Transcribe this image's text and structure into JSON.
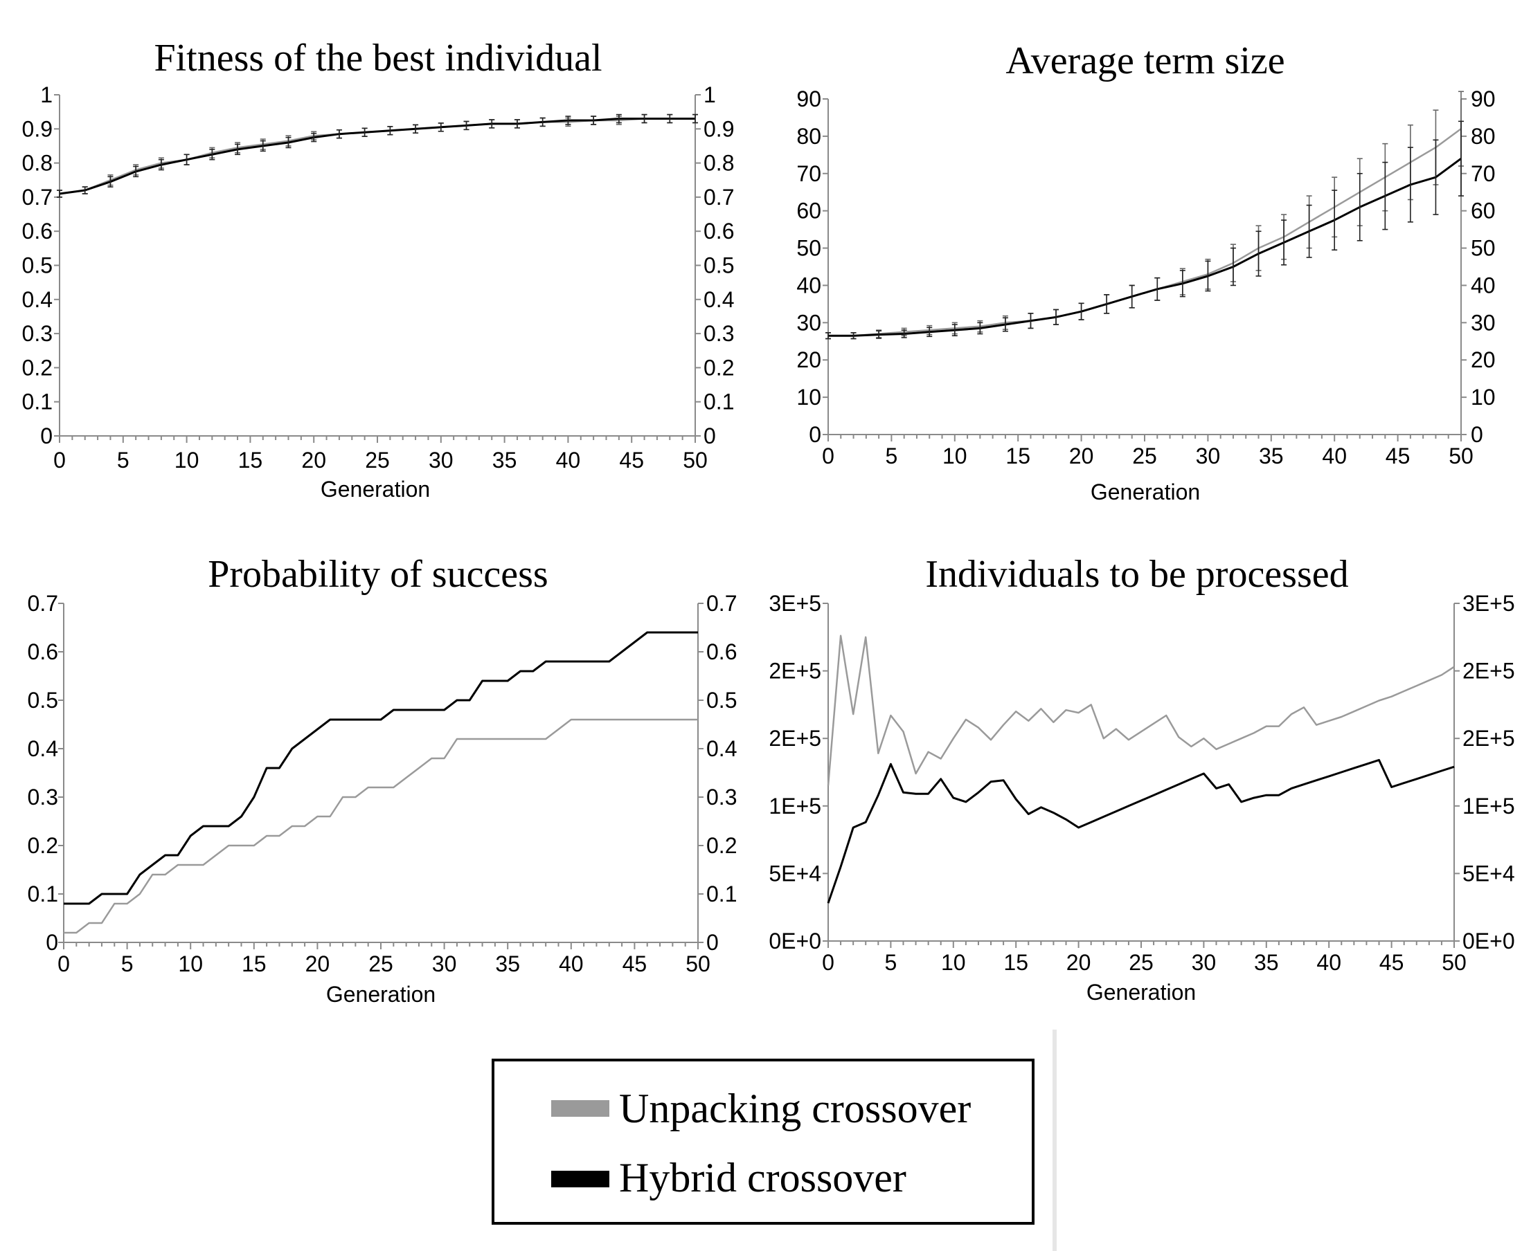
{
  "colors": {
    "unpacking": "#9a9a9a",
    "hybrid": "#000000",
    "axis": "#8a8a8a",
    "background": "#ffffff"
  },
  "legend": {
    "items": [
      {
        "label": "Unpacking crossover",
        "color": "#9a9a9a"
      },
      {
        "label": "Hybrid crossover",
        "color": "#000000"
      }
    ]
  },
  "chart_data": [
    {
      "id": "fitness",
      "type": "line",
      "title": "Fitness of the best individual",
      "xlabel": "Generation",
      "ylabel": "",
      "xlim": [
        0,
        50
      ],
      "ylim": [
        0,
        1
      ],
      "xticks": [
        0,
        5,
        10,
        15,
        20,
        25,
        30,
        35,
        40,
        45,
        50
      ],
      "yticks": [
        "0",
        "0.1",
        "0.2",
        "0.3",
        "0.4",
        "0.5",
        "0.6",
        "0.7",
        "0.8",
        "0.9",
        "1"
      ],
      "secondary_y_axis": true,
      "error_bars": true,
      "grid": false,
      "series": [
        {
          "key": "unpacking",
          "x": [
            0,
            2,
            4,
            6,
            8,
            10,
            12,
            14,
            16,
            18,
            20,
            22,
            24,
            26,
            28,
            30,
            32,
            34,
            36,
            38,
            40,
            42,
            44,
            46,
            48,
            50
          ],
          "values": [
            0.71,
            0.72,
            0.75,
            0.78,
            0.8,
            0.81,
            0.83,
            0.845,
            0.855,
            0.865,
            0.88,
            0.885,
            0.89,
            0.895,
            0.9,
            0.905,
            0.91,
            0.915,
            0.915,
            0.92,
            0.92,
            0.925,
            0.925,
            0.93,
            0.93,
            0.93
          ],
          "err": [
            0.01,
            0.01,
            0.015,
            0.015,
            0.015,
            0.015,
            0.015,
            0.015,
            0.015,
            0.015,
            0.012,
            0.012,
            0.012,
            0.012,
            0.012,
            0.012,
            0.012,
            0.012,
            0.012,
            0.012,
            0.012,
            0.012,
            0.012,
            0.012,
            0.012,
            0.012
          ]
        },
        {
          "key": "hybrid",
          "x": [
            0,
            2,
            4,
            6,
            8,
            10,
            12,
            14,
            16,
            18,
            20,
            22,
            24,
            26,
            28,
            30,
            32,
            34,
            36,
            38,
            40,
            42,
            44,
            46,
            48,
            50
          ],
          "values": [
            0.71,
            0.72,
            0.745,
            0.775,
            0.795,
            0.81,
            0.825,
            0.84,
            0.85,
            0.86,
            0.875,
            0.885,
            0.89,
            0.895,
            0.9,
            0.905,
            0.91,
            0.915,
            0.915,
            0.92,
            0.925,
            0.925,
            0.93,
            0.93,
            0.93,
            0.93
          ],
          "err": [
            0.01,
            0.01,
            0.015,
            0.015,
            0.015,
            0.015,
            0.015,
            0.015,
            0.015,
            0.015,
            0.012,
            0.012,
            0.012,
            0.012,
            0.012,
            0.012,
            0.012,
            0.012,
            0.012,
            0.012,
            0.012,
            0.012,
            0.012,
            0.012,
            0.012,
            0.012
          ]
        }
      ]
    },
    {
      "id": "termsize",
      "type": "line",
      "title": "Average term size",
      "xlabel": "Generation",
      "ylabel": "",
      "xlim": [
        0,
        50
      ],
      "ylim": [
        0,
        90
      ],
      "xticks": [
        0,
        5,
        10,
        15,
        20,
        25,
        30,
        35,
        40,
        45,
        50
      ],
      "yticks": [
        "0",
        "10",
        "20",
        "30",
        "40",
        "50",
        "60",
        "70",
        "80",
        "90"
      ],
      "secondary_y_axis": true,
      "error_bars": true,
      "grid": false,
      "series": [
        {
          "key": "unpacking",
          "x": [
            0,
            2,
            4,
            6,
            8,
            10,
            12,
            14,
            16,
            18,
            20,
            22,
            24,
            26,
            28,
            30,
            32,
            34,
            36,
            38,
            40,
            42,
            44,
            46,
            48,
            50
          ],
          "values": [
            26.5,
            26.5,
            27,
            27.5,
            28,
            28.5,
            29,
            30,
            30.5,
            31.5,
            33,
            35,
            37,
            39,
            41,
            43,
            46,
            50,
            53,
            57,
            61,
            65,
            69,
            73,
            77,
            82
          ],
          "err": [
            0.8,
            0.8,
            1,
            1,
            1.2,
            1.5,
            1.5,
            1.8,
            2,
            2,
            2.2,
            2.5,
            3,
            3,
            3.5,
            4,
            5,
            6,
            6,
            7,
            8,
            9,
            9,
            10,
            10,
            10
          ]
        },
        {
          "key": "hybrid",
          "x": [
            0,
            2,
            4,
            6,
            8,
            10,
            12,
            14,
            16,
            18,
            20,
            22,
            24,
            26,
            28,
            30,
            32,
            34,
            36,
            38,
            40,
            42,
            44,
            46,
            48,
            50
          ],
          "values": [
            26.5,
            26.5,
            26.8,
            27,
            27.5,
            28,
            28.5,
            29.5,
            30.5,
            31.5,
            33,
            35,
            37,
            39,
            40.5,
            42.5,
            45,
            48.5,
            51.5,
            54.5,
            57.5,
            61,
            64,
            67,
            69,
            74
          ],
          "err": [
            0.8,
            0.8,
            1,
            1,
            1.2,
            1.5,
            1.5,
            1.8,
            2,
            2,
            2.2,
            2.5,
            3,
            3,
            3.5,
            4,
            5,
            6,
            6,
            7,
            8,
            9,
            9,
            10,
            10,
            10
          ]
        }
      ]
    },
    {
      "id": "success",
      "type": "line",
      "title": "Probability of success",
      "xlabel": "Generation",
      "ylabel": "",
      "xlim": [
        0,
        50
      ],
      "ylim": [
        0,
        0.7
      ],
      "xticks": [
        0,
        5,
        10,
        15,
        20,
        25,
        30,
        35,
        40,
        45,
        50
      ],
      "yticks": [
        "0",
        "0.1",
        "0.2",
        "0.3",
        "0.4",
        "0.5",
        "0.6",
        "0.7"
      ],
      "secondary_y_axis": true,
      "error_bars": false,
      "grid": false,
      "series": [
        {
          "key": "unpacking",
          "x": [
            0,
            1,
            2,
            3,
            4,
            5,
            6,
            7,
            8,
            9,
            10,
            11,
            12,
            13,
            14,
            15,
            16,
            17,
            18,
            19,
            20,
            21,
            22,
            23,
            24,
            25,
            26,
            27,
            28,
            29,
            30,
            31,
            32,
            33,
            34,
            35,
            36,
            37,
            38,
            39,
            40,
            41,
            42,
            43,
            44,
            45,
            46,
            47,
            48,
            49,
            50
          ],
          "values": [
            0.02,
            0.02,
            0.04,
            0.04,
            0.08,
            0.08,
            0.1,
            0.14,
            0.14,
            0.16,
            0.16,
            0.16,
            0.18,
            0.2,
            0.2,
            0.2,
            0.22,
            0.22,
            0.24,
            0.24,
            0.26,
            0.26,
            0.3,
            0.3,
            0.32,
            0.32,
            0.32,
            0.34,
            0.36,
            0.38,
            0.38,
            0.42,
            0.42,
            0.42,
            0.42,
            0.42,
            0.42,
            0.42,
            0.42,
            0.44,
            0.46,
            0.46,
            0.46,
            0.46,
            0.46,
            0.46,
            0.46,
            0.46,
            0.46,
            0.46,
            0.46
          ]
        },
        {
          "key": "hybrid",
          "x": [
            0,
            1,
            2,
            3,
            4,
            5,
            6,
            7,
            8,
            9,
            10,
            11,
            12,
            13,
            14,
            15,
            16,
            17,
            18,
            19,
            20,
            21,
            22,
            23,
            24,
            25,
            26,
            27,
            28,
            29,
            30,
            31,
            32,
            33,
            34,
            35,
            36,
            37,
            38,
            39,
            40,
            41,
            42,
            43,
            44,
            45,
            46,
            47,
            48,
            49,
            50
          ],
          "values": [
            0.08,
            0.08,
            0.08,
            0.1,
            0.1,
            0.1,
            0.14,
            0.16,
            0.18,
            0.18,
            0.22,
            0.24,
            0.24,
            0.24,
            0.26,
            0.3,
            0.36,
            0.36,
            0.4,
            0.42,
            0.44,
            0.46,
            0.46,
            0.46,
            0.46,
            0.46,
            0.48,
            0.48,
            0.48,
            0.48,
            0.48,
            0.5,
            0.5,
            0.54,
            0.54,
            0.54,
            0.56,
            0.56,
            0.58,
            0.58,
            0.58,
            0.58,
            0.58,
            0.58,
            0.6,
            0.62,
            0.64,
            0.64,
            0.64,
            0.64,
            0.64
          ]
        }
      ]
    },
    {
      "id": "processed",
      "type": "line",
      "title": "Individuals to be processed",
      "xlabel": "Generation",
      "ylabel": "",
      "xlim": [
        0,
        50
      ],
      "ylim": [
        0,
        250000
      ],
      "xticks": [
        0,
        5,
        10,
        15,
        20,
        25,
        30,
        35,
        40,
        45,
        50
      ],
      "yticks": [
        "0E+0",
        "5E+4",
        "1E+5",
        "2E+5",
        "2E+5",
        "3E+5"
      ],
      "secondary_y_axis": true,
      "error_bars": false,
      "grid": false,
      "series": [
        {
          "key": "unpacking",
          "x": [
            0,
            1,
            2,
            3,
            4,
            5,
            6,
            7,
            8,
            9,
            10,
            11,
            12,
            13,
            14,
            15,
            16,
            17,
            18,
            19,
            20,
            21,
            22,
            23,
            24,
            25,
            26,
            27,
            28,
            29,
            30,
            31,
            32,
            33,
            34,
            35,
            36,
            37,
            38,
            39,
            40,
            41,
            42,
            43,
            44,
            45,
            46,
            47,
            48,
            49,
            50
          ],
          "values": [
            115000,
            226000,
            168000,
            225000,
            139000,
            167000,
            155000,
            124000,
            140000,
            135000,
            150000,
            164000,
            158000,
            149000,
            160000,
            170000,
            163000,
            172000,
            162000,
            171000,
            169000,
            175000,
            150000,
            157000,
            149000,
            155000,
            161000,
            167000,
            151000,
            144000,
            150000,
            142000,
            146000,
            150000,
            154000,
            159000,
            159000,
            168000,
            173000,
            160000,
            163000,
            166000,
            170000,
            174000,
            178000,
            181000,
            185000,
            189000,
            193000,
            197000,
            203000
          ]
        },
        {
          "key": "hybrid",
          "x": [
            0,
            1,
            2,
            3,
            4,
            5,
            6,
            7,
            8,
            9,
            10,
            11,
            12,
            13,
            14,
            15,
            16,
            17,
            18,
            19,
            20,
            21,
            22,
            23,
            24,
            25,
            26,
            27,
            28,
            29,
            30,
            31,
            32,
            33,
            34,
            35,
            36,
            37,
            38,
            39,
            40,
            41,
            42,
            43,
            44,
            45,
            46,
            47,
            48,
            49,
            50
          ],
          "values": [
            28000,
            55000,
            84000,
            88000,
            108000,
            131000,
            110000,
            109000,
            109000,
            120000,
            106000,
            103000,
            110000,
            118000,
            119000,
            105000,
            94000,
            99000,
            95000,
            90000,
            84000,
            88000,
            92000,
            96000,
            100000,
            104000,
            108000,
            112000,
            116000,
            120000,
            124000,
            113000,
            116000,
            103000,
            106000,
            108000,
            108000,
            113000,
            116000,
            119000,
            122000,
            125000,
            128000,
            131000,
            134000,
            114000,
            117000,
            120000,
            123000,
            126000,
            129000
          ]
        }
      ]
    }
  ]
}
